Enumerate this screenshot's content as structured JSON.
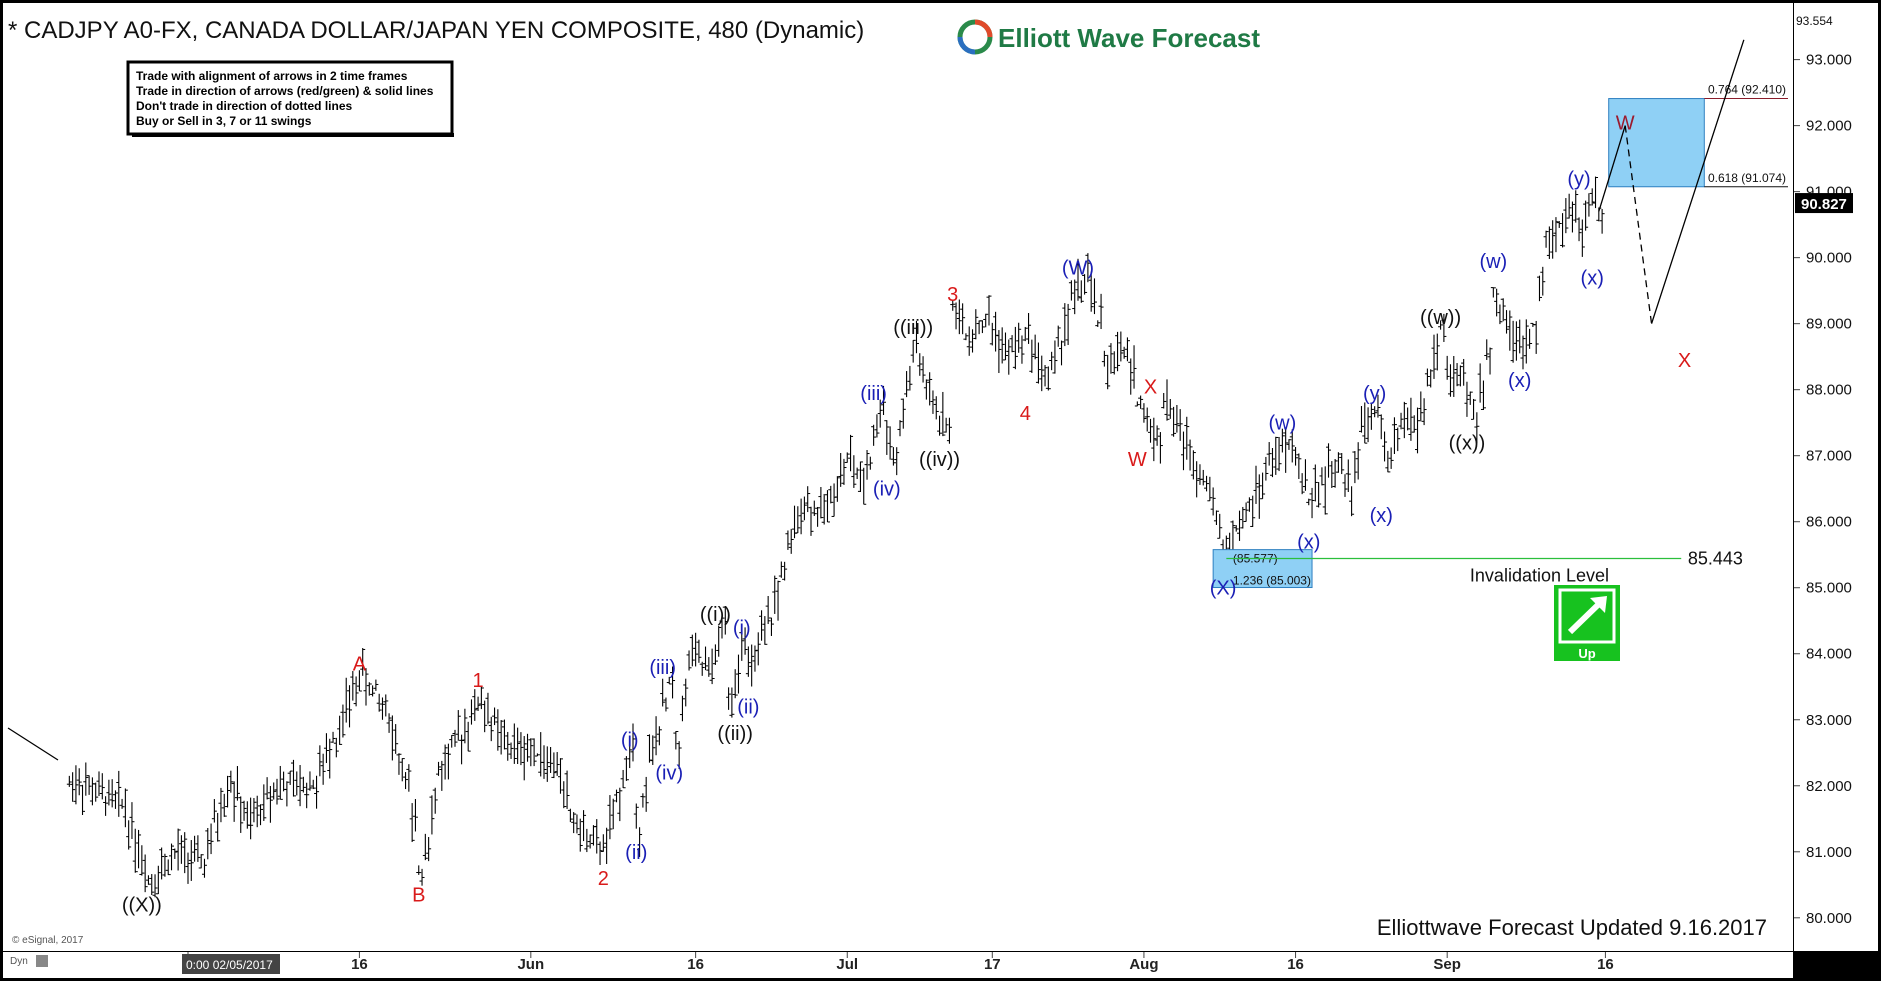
{
  "header": {
    "title": "* CADJPY A0-FX, CANADA DOLLAR/JAPAN YEN COMPOSITE, 480 (Dynamic)",
    "logo_text": "Elliott Wave Forecast"
  },
  "rules_box": {
    "lines": [
      "Trade with alignment of arrows in 2 time frames",
      "Trade in direction of arrows (red/green) & solid lines",
      "Don't trade in direction of dotted lines",
      "Buy or Sell in 3, 7 or 11 swings"
    ]
  },
  "chart_data": {
    "type": "ohlc-bar",
    "title": "* CADJPY A0-FX, CANADA DOLLAR/JAPAN YEN COMPOSITE, 480 (Dynamic)",
    "ylim": [
      79.8,
      93.6
    ],
    "y_ticks": [
      "80.000",
      "81.000",
      "82.000",
      "83.000",
      "84.000",
      "85.000",
      "86.000",
      "87.000",
      "88.000",
      "89.000",
      "90.000",
      "91.000",
      "92.000",
      "93.000"
    ],
    "y_top_label": "93.554",
    "last_price": "90.827",
    "x_tick_labels": [
      {
        "label": "0:00 02/05/2017",
        "bar": 0
      },
      {
        "label": "16",
        "bar": 26
      },
      {
        "label": "Jun",
        "bar": 52
      },
      {
        "label": "16",
        "bar": 77
      },
      {
        "label": "Jul",
        "bar": 100
      },
      {
        "label": "17",
        "bar": 122
      },
      {
        "label": "Aug",
        "bar": 145
      },
      {
        "label": "16",
        "bar": 168
      },
      {
        "label": "Sep",
        "bar": 191
      },
      {
        "label": "16",
        "bar": 215
      }
    ],
    "pivots": [
      [
        -18,
        82.1
      ],
      [
        -10,
        81.7
      ],
      [
        -6,
        80.55
      ],
      [
        -2,
        81.0
      ],
      [
        2,
        80.8
      ],
      [
        6,
        82.1
      ],
      [
        9,
        81.4
      ],
      [
        13,
        82.0
      ],
      [
        19,
        82.0
      ],
      [
        22,
        82.7
      ],
      [
        26,
        83.7
      ],
      [
        30,
        83.1
      ],
      [
        33,
        82.0
      ],
      [
        35,
        80.7
      ],
      [
        38,
        82.2
      ],
      [
        44,
        83.3
      ],
      [
        48,
        82.6
      ],
      [
        53,
        82.5
      ],
      [
        56,
        82.2
      ],
      [
        58,
        81.5
      ],
      [
        61,
        81.1
      ],
      [
        63,
        81.05
      ],
      [
        65,
        81.8
      ],
      [
        67,
        82.6
      ],
      [
        68,
        81.4
      ],
      [
        70,
        82.4
      ],
      [
        73,
        83.6
      ],
      [
        74,
        82.6
      ],
      [
        76,
        84.0
      ],
      [
        79,
        83.7
      ],
      [
        81,
        84.5
      ],
      [
        82,
        83.2
      ],
      [
        84,
        84.3
      ],
      [
        85,
        83.7
      ],
      [
        88,
        84.5
      ],
      [
        90,
        85.2
      ],
      [
        93,
        86.3
      ],
      [
        96,
        86.1
      ],
      [
        100,
        87.0
      ],
      [
        102,
        86.5
      ],
      [
        105,
        87.8
      ],
      [
        107,
        86.9
      ],
      [
        110,
        88.7
      ],
      [
        112,
        87.9
      ],
      [
        115,
        87.4
      ],
      [
        116,
        89.3
      ],
      [
        118,
        88.8
      ],
      [
        121,
        89.1
      ],
      [
        124,
        88.5
      ],
      [
        127,
        88.9
      ],
      [
        130,
        88.1
      ],
      [
        132,
        88.7
      ],
      [
        134,
        89.4
      ],
      [
        136,
        89.7
      ],
      [
        138,
        89.0
      ],
      [
        139,
        88.4
      ],
      [
        142,
        88.6
      ],
      [
        144,
        87.8
      ],
      [
        147,
        87.2
      ],
      [
        148,
        87.9
      ],
      [
        150,
        87.4
      ],
      [
        154,
        86.6
      ],
      [
        156,
        86.0
      ],
      [
        157,
        85.5
      ],
      [
        159,
        85.9
      ],
      [
        161,
        86.2
      ],
      [
        164,
        86.9
      ],
      [
        167,
        87.2
      ],
      [
        168,
        86.9
      ],
      [
        170,
        86.3
      ],
      [
        172,
        86.6
      ],
      [
        174,
        86.9
      ],
      [
        176,
        86.5
      ],
      [
        178,
        87.4
      ],
      [
        180,
        87.7
      ],
      [
        181,
        87.3
      ],
      [
        182,
        86.8
      ],
      [
        184,
        87.6
      ],
      [
        186,
        87.4
      ],
      [
        188,
        88.1
      ],
      [
        190,
        89.0
      ],
      [
        191,
        88.2
      ],
      [
        193,
        88.1
      ],
      [
        195,
        87.6
      ],
      [
        197,
        88.5
      ],
      [
        198,
        89.5
      ],
      [
        200,
        88.9
      ],
      [
        202,
        88.6
      ],
      [
        204,
        89.0
      ],
      [
        206,
        90.2
      ],
      [
        208,
        90.5
      ],
      [
        210,
        90.8
      ],
      [
        211,
        90.3
      ],
      [
        213,
        91.0
      ],
      [
        214,
        90.6
      ]
    ],
    "wave_labels": [
      {
        "text": "((X))",
        "bar": -7,
        "price": 80.2,
        "color": "black"
      },
      {
        "text": "A",
        "bar": 26,
        "price": 83.85,
        "color": "red"
      },
      {
        "text": "B",
        "bar": 35,
        "price": 80.35,
        "color": "red"
      },
      {
        "text": "1",
        "bar": 44,
        "price": 83.6,
        "color": "red"
      },
      {
        "text": "2",
        "bar": 63,
        "price": 80.6,
        "color": "red"
      },
      {
        "text": "(i)",
        "bar": 67,
        "price": 82.7,
        "color": "blue"
      },
      {
        "text": "(ii)",
        "bar": 68,
        "price": 81.0,
        "color": "blue"
      },
      {
        "text": "(iii)",
        "bar": 72,
        "price": 83.8,
        "color": "blue"
      },
      {
        "text": "(iv)",
        "bar": 73,
        "price": 82.2,
        "color": "blue"
      },
      {
        "text": "((i))",
        "bar": 80,
        "price": 84.6,
        "color": "black"
      },
      {
        "text": "(i)",
        "bar": 84,
        "price": 84.4,
        "color": "blue"
      },
      {
        "text": "(ii)",
        "bar": 85,
        "price": 83.2,
        "color": "blue"
      },
      {
        "text": "((ii))",
        "bar": 83,
        "price": 82.8,
        "color": "black"
      },
      {
        "text": "(iii)",
        "bar": 104,
        "price": 87.95,
        "color": "blue"
      },
      {
        "text": "(iv)",
        "bar": 106,
        "price": 86.5,
        "color": "blue"
      },
      {
        "text": "((iii))",
        "bar": 110,
        "price": 88.95,
        "color": "black"
      },
      {
        "text": "((iv))",
        "bar": 114,
        "price": 86.95,
        "color": "black"
      },
      {
        "text": "3",
        "bar": 116,
        "price": 89.45,
        "color": "red"
      },
      {
        "text": "4",
        "bar": 127,
        "price": 87.65,
        "color": "red"
      },
      {
        "text": "(W)",
        "bar": 135,
        "price": 89.85,
        "color": "blue"
      },
      {
        "text": "X",
        "bar": 146,
        "price": 88.05,
        "color": "red"
      },
      {
        "text": "W",
        "bar": 144,
        "price": 86.95,
        "color": "red"
      },
      {
        "text": "(X)",
        "bar": 157,
        "price": 85.0,
        "color": "blue"
      },
      {
        "text": "(w)",
        "bar": 166,
        "price": 87.5,
        "color": "blue"
      },
      {
        "text": "(x)",
        "bar": 170,
        "price": 85.7,
        "color": "blue"
      },
      {
        "text": "(y)",
        "bar": 180,
        "price": 87.95,
        "color": "blue"
      },
      {
        "text": "(x)",
        "bar": 181,
        "price": 86.1,
        "color": "blue"
      },
      {
        "text": "((w))",
        "bar": 190,
        "price": 89.1,
        "color": "black"
      },
      {
        "text": "((x))",
        "bar": 194,
        "price": 87.2,
        "color": "black"
      },
      {
        "text": "(w)",
        "bar": 198,
        "price": 89.95,
        "color": "blue"
      },
      {
        "text": "(x)",
        "bar": 202,
        "price": 88.15,
        "color": "blue"
      },
      {
        "text": "(y)",
        "bar": 211,
        "price": 91.2,
        "color": "blue"
      },
      {
        "text": "(x)",
        "bar": 213,
        "price": 89.7,
        "color": "blue"
      },
      {
        "text": "W",
        "bar": 218,
        "price": 92.05,
        "color": "darkred"
      },
      {
        "text": "X",
        "bar": 227,
        "price": 88.45,
        "color": "red"
      }
    ],
    "target_zone": {
      "top": 92.41,
      "bottom": 91.074,
      "label_top": "0.764 (92.410)",
      "label_bottom": "0.618 (91.074)"
    },
    "support_zone": {
      "top": 85.577,
      "bottom": 85.003,
      "label_top": "(85.577)",
      "label_bottom": "1.236 (85.003)"
    },
    "invalidation": {
      "price": 85.443,
      "label": "Invalidation Level",
      "value_label": "85.443"
    },
    "projection": [
      [
        214,
        90.7
      ],
      [
        218,
        92.0
      ],
      [
        222,
        89.0
      ],
      [
        227,
        89.0
      ],
      [
        236,
        93.3
      ]
    ],
    "trend_arrow": {
      "label": "Up"
    }
  },
  "footer": {
    "updated": "Elliottwave Forecast Updated 9.16.2017",
    "copyright": "© eSignal, 2017",
    "tag": "Dyn"
  },
  "colors": {
    "blue_label": "#1a1fb5",
    "red_label": "#d91a1a",
    "darkred_label": "#9c1b2e",
    "zone_fill": "#8fd0f5",
    "zone_stroke": "#2d7fc0",
    "invalidation": "#2bbf3c",
    "arrow_green": "#17c21f"
  }
}
